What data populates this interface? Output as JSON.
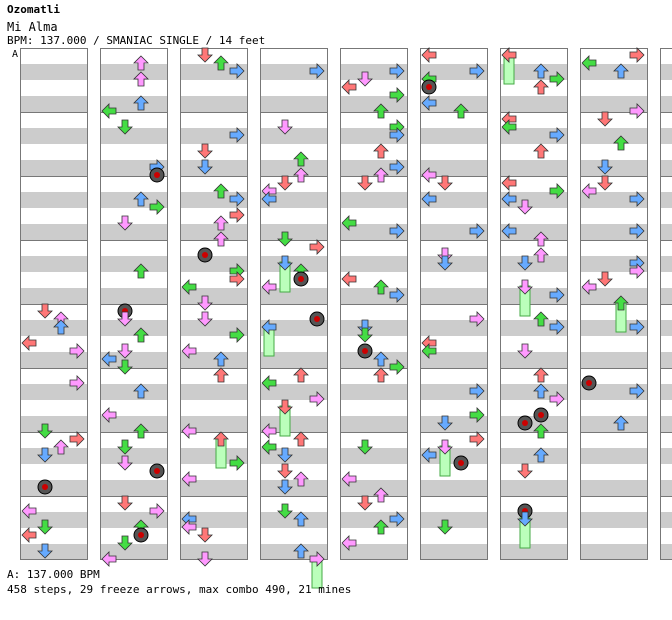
{
  "song": {
    "artist": "Ozomatli",
    "title": "Mi Alma",
    "info_line": "BPM: 137.000 / SMANIAC SINGLE / 14 feet",
    "bpm_marker": "A"
  },
  "footer": {
    "bpm_legend": "A: 137.000 BPM",
    "stats": "458 steps, 29 freeze arrows, max combo 490, 21 mines"
  },
  "colors": {
    "stripe": "#cccccc",
    "column_border": "#777777",
    "arrow_red": "#ff7777",
    "arrow_blue": "#66aaff",
    "arrow_pink": "#ff99ff",
    "arrow_green": "#44dd44",
    "freeze_body": "#bbffbb",
    "mine": "#333333"
  },
  "chart_data": {
    "type": "step-chart",
    "columns": 9,
    "measures_per_column": 8,
    "lanes": [
      "left",
      "down",
      "up",
      "right"
    ],
    "note_colors": [
      "red",
      "blue",
      "pink",
      "green"
    ],
    "steps": 458,
    "freeze_arrows": 29,
    "max_combo": 490,
    "mines": 21
  }
}
